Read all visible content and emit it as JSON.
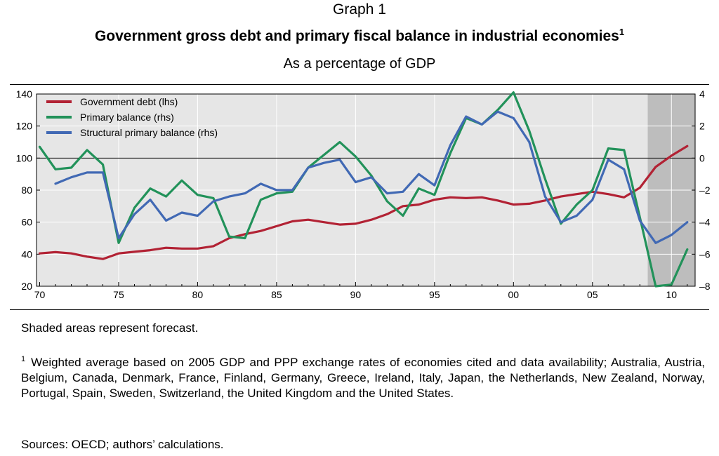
{
  "header": {
    "graph_number": "Graph 1",
    "title": "Government gross debt and primary fiscal balance in industrial economies",
    "title_footnote_marker": "1",
    "subtitle": "As a percentage of GDP"
  },
  "chart_data": {
    "type": "line",
    "x_tick_labels": [
      "70",
      "75",
      "80",
      "85",
      "90",
      "95",
      "00",
      "05",
      "10"
    ],
    "x_tick_years": [
      1970,
      1975,
      1980,
      1985,
      1990,
      1995,
      2000,
      2005,
      2010
    ],
    "xlim": [
      1969.8,
      2011.5
    ],
    "left_axis": {
      "label": "lhs",
      "ylim": [
        20,
        140
      ],
      "ticks": [
        20,
        40,
        60,
        80,
        100,
        120,
        140
      ]
    },
    "right_axis": {
      "label": "rhs",
      "ylim": [
        -8,
        4
      ],
      "ticks": [
        -8,
        -6,
        -4,
        -2,
        0,
        2,
        4
      ],
      "tick_labels": [
        "–8",
        "–6",
        "–4",
        "–2",
        "0",
        "2",
        "4"
      ]
    },
    "zero_line_rhs": 0,
    "forecast_shading": {
      "from": 2008.5,
      "to": 2011.5,
      "label": "forecast"
    },
    "series": [
      {
        "name": "Government debt (lhs)",
        "axis": "left",
        "color": "#b22234",
        "x": [
          1970,
          1971,
          1972,
          1973,
          1974,
          1975,
          1976,
          1977,
          1978,
          1979,
          1980,
          1981,
          1982,
          1983,
          1984,
          1985,
          1986,
          1987,
          1988,
          1989,
          1990,
          1991,
          1992,
          1993,
          1994,
          1995,
          1996,
          1997,
          1998,
          1999,
          2000,
          2001,
          2002,
          2003,
          2004,
          2005,
          2006,
          2007,
          2008,
          2009,
          2010,
          2011
        ],
        "values": [
          40.5,
          41.3,
          40.5,
          38.5,
          37,
          40.5,
          41.5,
          42.5,
          44,
          43.5,
          43.5,
          45,
          50,
          52.5,
          54.5,
          57.5,
          60.5,
          61.5,
          60,
          58.5,
          59,
          61.5,
          65,
          70,
          71,
          74,
          75.5,
          75,
          75.5,
          73.5,
          71,
          71.5,
          73.5,
          76,
          77.5,
          79,
          77.5,
          75.5,
          81.5,
          94.5,
          101.5,
          107.5
        ]
      },
      {
        "name": "Primary balance (rhs)",
        "axis": "right",
        "color": "#22925a",
        "x": [
          1970,
          1971,
          1972,
          1973,
          1974,
          1975,
          1976,
          1977,
          1978,
          1979,
          1980,
          1981,
          1982,
          1983,
          1984,
          1985,
          1986,
          1987,
          1988,
          1989,
          1990,
          1991,
          1992,
          1993,
          1994,
          1995,
          1996,
          1997,
          1998,
          1999,
          2000,
          2001,
          2002,
          2003,
          2004,
          2005,
          2006,
          2007,
          2008,
          2009,
          2010,
          2011
        ],
        "values": [
          0.7,
          -0.7,
          -0.6,
          0.5,
          -0.4,
          -5.3,
          -3.1,
          -1.9,
          -2.4,
          -1.4,
          -2.3,
          -2.5,
          -4.9,
          -5.0,
          -2.6,
          -2.2,
          -2.1,
          -0.6,
          0.2,
          1.0,
          0.1,
          -1.1,
          -2.7,
          -3.6,
          -1.9,
          -2.3,
          0.3,
          2.5,
          2.1,
          3.0,
          4.1,
          1.7,
          -1.3,
          -4.1,
          -2.9,
          -2.0,
          0.6,
          0.5,
          -3.7,
          -8.0,
          -7.9,
          -5.7
        ]
      },
      {
        "name": "Structural primary balance (rhs)",
        "axis": "right",
        "color": "#4169b4",
        "x": [
          1971,
          1972,
          1973,
          1974,
          1975,
          1976,
          1977,
          1978,
          1979,
          1980,
          1981,
          1982,
          1983,
          1984,
          1985,
          1986,
          1987,
          1988,
          1989,
          1990,
          1991,
          1992,
          1993,
          1994,
          1995,
          1996,
          1997,
          1998,
          1999,
          2000,
          2001,
          2002,
          2003,
          2004,
          2005,
          2006,
          2007,
          2008,
          2009,
          2010,
          2011
        ],
        "values": [
          -1.6,
          -1.2,
          -0.9,
          -0.9,
          -5.0,
          -3.5,
          -2.6,
          -3.9,
          -3.4,
          -3.6,
          -2.7,
          -2.4,
          -2.2,
          -1.6,
          -2.0,
          -2.0,
          -0.6,
          -0.3,
          -0.1,
          -1.5,
          -1.2,
          -2.2,
          -2.1,
          -1.0,
          -1.7,
          0.8,
          2.6,
          2.1,
          2.9,
          2.5,
          1.0,
          -2.4,
          -4.0,
          -3.6,
          -2.6,
          -0.1,
          -0.7,
          -3.9,
          -5.3,
          -4.8,
          -4.0
        ]
      }
    ],
    "legend_position": "top-left"
  },
  "notes": {
    "shading": "Shaded areas represent forecast.",
    "footnote_marker": "1",
    "footnote": "Weighted average based on 2005 GDP and PPP exchange rates of economies cited and data availability; Australia, Austria, Belgium, Canada, Denmark, France, Finland, Germany, Greece, Ireland, Italy, Japan, the Netherlands, New Zealand, Norway, Portugal, Spain, Sweden, Switzerland, the United Kingdom and the United States.",
    "sources": "Sources: OECD; authors’ calculations."
  },
  "colors": {
    "plot_background": "#e6e6e6",
    "forecast_shade": "#bdbdbd",
    "grid": "#ffffff"
  }
}
